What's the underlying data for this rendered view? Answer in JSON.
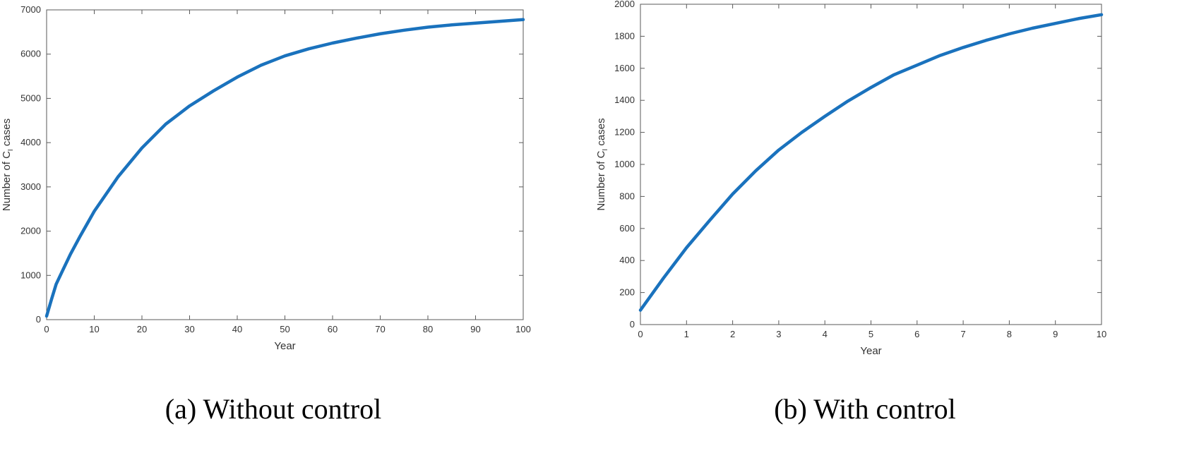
{
  "chart_data": [
    {
      "type": "line",
      "caption": "(a)  Without control",
      "xlabel": "Year",
      "ylabel": {
        "prefix": "Number of C",
        "subscript": "I",
        "suffix": " cases"
      },
      "xlim": [
        0,
        100
      ],
      "ylim": [
        0,
        7000
      ],
      "xticks": [
        0,
        10,
        20,
        30,
        40,
        50,
        60,
        70,
        80,
        90,
        100
      ],
      "yticks": [
        0,
        1000,
        2000,
        3000,
        4000,
        5000,
        6000,
        7000
      ],
      "grid": false,
      "series": [
        {
          "color": "#1a72bd",
          "x": [
            0,
            1,
            2,
            3,
            5,
            7,
            10,
            15,
            20,
            25,
            30,
            35,
            40,
            45,
            50,
            55,
            60,
            65,
            70,
            75,
            80,
            85,
            90,
            95,
            100
          ],
          "y": [
            80,
            450,
            800,
            1030,
            1480,
            1880,
            2450,
            3230,
            3880,
            4420,
            4830,
            5170,
            5480,
            5750,
            5960,
            6120,
            6250,
            6360,
            6460,
            6540,
            6610,
            6660,
            6700,
            6740,
            6780
          ]
        }
      ]
    },
    {
      "type": "line",
      "caption": "(b) With control",
      "xlabel": "Year",
      "ylabel": {
        "prefix": "Number of C",
        "subscript": "I",
        "suffix": " cases"
      },
      "xlim": [
        0,
        10
      ],
      "ylim": [
        0,
        2000
      ],
      "xticks": [
        0,
        1,
        2,
        3,
        4,
        5,
        6,
        7,
        8,
        9,
        10
      ],
      "yticks": [
        0,
        200,
        400,
        600,
        800,
        1000,
        1200,
        1400,
        1600,
        1800,
        2000
      ],
      "grid": false,
      "series": [
        {
          "color": "#1a72bd",
          "x": [
            0,
            0.5,
            1,
            1.5,
            2,
            2.5,
            3,
            3.5,
            4,
            4.5,
            5,
            5.5,
            6,
            6.5,
            7,
            7.5,
            8,
            8.5,
            9,
            9.5,
            10
          ],
          "y": [
            90,
            290,
            480,
            650,
            815,
            960,
            1090,
            1200,
            1300,
            1395,
            1480,
            1560,
            1620,
            1680,
            1730,
            1775,
            1815,
            1850,
            1880,
            1910,
            1935
          ]
        }
      ]
    }
  ]
}
